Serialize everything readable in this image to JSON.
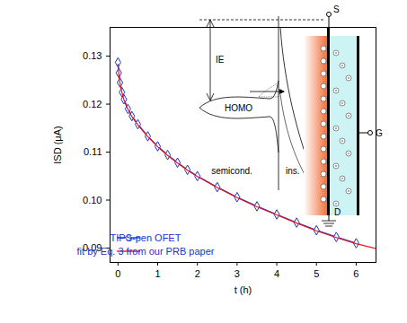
{
  "chart_data": {
    "type": "line",
    "x_label": "t (h)",
    "y_label": "ISD (μA)",
    "x": [
      0,
      0.02,
      0.05,
      0.1,
      0.15,
      0.25,
      0.35,
      0.5,
      0.75,
      1,
      1.25,
      1.5,
      1.75,
      2,
      2.5,
      3,
      3.5,
      4,
      4.5,
      5,
      5.5,
      6,
      6.5
    ],
    "series": [
      {
        "name": "TIPS-pen OFET",
        "color": "#1a33cc",
        "marker": "diamond",
        "line_style": "solid",
        "values": [
          0.1287,
          0.1265,
          0.1245,
          0.1225,
          0.121,
          0.119,
          0.1175,
          0.1158,
          0.1133,
          0.1112,
          0.1094,
          0.1078,
          0.1063,
          0.105,
          0.1027,
          0.1006,
          0.0987,
          0.097,
          0.0953,
          0.0937,
          0.0923,
          0.091,
          null
        ]
      },
      {
        "name": "fit by Eq. 3 from our PRB paper",
        "color": "#e8141e",
        "marker": "none",
        "line_style": "solid",
        "values": [
          0.1283,
          0.1263,
          0.1244,
          0.1224,
          0.1209,
          0.1189,
          0.1174,
          0.1157,
          0.1132,
          0.1111,
          0.1093,
          0.1077,
          0.1062,
          0.1049,
          0.1026,
          0.1005,
          0.0986,
          0.0969,
          0.0952,
          0.0936,
          0.0922,
          0.0909,
          0.0899
        ]
      }
    ],
    "xlim": [
      -0.2,
      6.5
    ],
    "ylim": [
      0.087,
      0.136
    ],
    "xticks": [
      0,
      1,
      2,
      3,
      4,
      5,
      6
    ],
    "yticks": [
      0.09,
      {
        "value": 0.1,
        "label": "0.10"
      },
      0.11,
      0.12,
      0.13
    ],
    "grid": false,
    "legend": "lower left",
    "annotations": [
      "IE",
      "HOMO",
      "semicond.",
      "ins.",
      "S",
      "G",
      "D"
    ]
  }
}
